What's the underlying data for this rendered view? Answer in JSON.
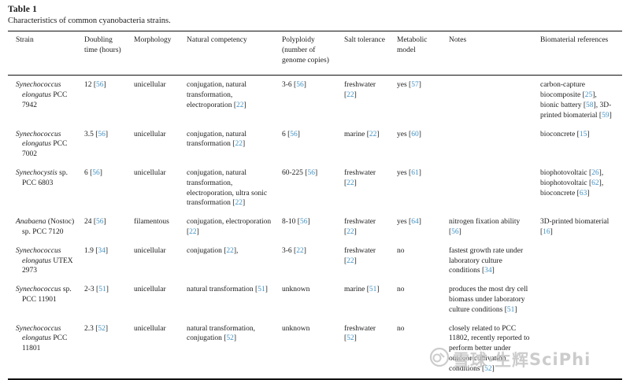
{
  "page": {
    "table_label": "Table 1",
    "caption": "Characteristics of common cyanobacteria strains."
  },
  "colors": {
    "citation_link": "#4293c6",
    "rule": "#111111",
    "watermark": "#c7c7c7"
  },
  "columns": {
    "strain": "Strain",
    "doubling": "Doubling time (hours)",
    "morphology": "Morphology",
    "competency": "Natural competency",
    "polyploidy": "Polyploidy (number of genome copies)",
    "salt": "Salt tolerance",
    "metabolic": "Metabolic model",
    "notes": "Notes",
    "biomaterial": "Biomaterial references"
  },
  "rows": [
    {
      "strain_italic": "Synechococcus elongatus",
      "strain_roman": "PCC 7942",
      "doubling": "12 [56]",
      "morphology": "unicellular",
      "competency": "conjugation, natural transformation, electroporation [22]",
      "polyploidy": "3-6 [56]",
      "salt": "freshwater [22]",
      "metabolic": "yes [57]",
      "notes": "",
      "biomaterial": "carbon-capture biocomposite [25], bionic battery [58], 3D-printed biomaterial [59]"
    },
    {
      "strain_italic": "Synechococcus elongatus",
      "strain_roman": "PCC 7002",
      "doubling": "3.5 [56]",
      "morphology": "unicellular",
      "competency": "conjugation, natural transformation [22]",
      "polyploidy": "6 [56]",
      "salt": "marine [22]",
      "metabolic": "yes [60]",
      "notes": "",
      "biomaterial": "bioconcrete [15]"
    },
    {
      "strain_italic": "Synechocystis",
      "strain_roman": "sp. PCC 6803",
      "doubling": "6 [56]",
      "morphology": "unicellular",
      "competency": "conjugation, natural transformation, electroporation, ultra sonic transformation [22]",
      "polyploidy": "60-225 [56]",
      "salt": "freshwater [22]",
      "metabolic": "yes [61]",
      "notes": "",
      "biomaterial": "biophotovoltaic [26], biophotovoltaic [62], bioconcrete [63]"
    },
    {
      "strain_italic": "Anabaena",
      "strain_roman": "(Nostoc) sp. PCC 7120",
      "doubling": "24 [56]",
      "morphology": "filamentous",
      "competency": "conjugation, electroporation [22]",
      "polyploidy": "8-10 [56]",
      "salt": "freshwater [22]",
      "metabolic": "yes [64]",
      "notes": "nitrogen fixation ability [56]",
      "biomaterial": "3D-printed biomaterial [16]"
    },
    {
      "strain_italic": "Synechococcus elongatus",
      "strain_roman": "UTEX 2973",
      "doubling": "1.9 [34]",
      "morphology": "unicellular",
      "competency": "conjugation [22],",
      "polyploidy": "3-6 [22]",
      "salt": "freshwater [22]",
      "metabolic": "no",
      "notes": "fastest growth rate under laboratory culture conditions [34]",
      "biomaterial": ""
    },
    {
      "strain_italic": "Synechococcus",
      "strain_roman": "sp. PCC 11901",
      "doubling": "2-3 [51]",
      "morphology": "unicellular",
      "competency": "natural transformation [51]",
      "polyploidy": "unknown",
      "salt": "marine [51]",
      "metabolic": "no",
      "notes": "produces the most dry cell biomass under laboratory culture conditions [51]",
      "biomaterial": ""
    },
    {
      "strain_italic": "Synechococcus elongatus",
      "strain_roman": "PCC 11801",
      "doubling": "2.3 [52]",
      "morphology": "unicellular",
      "competency": "natural transformation, conjugation [52]",
      "polyploidy": "unknown",
      "salt": "freshwater [52]",
      "metabolic": "no",
      "notes": "closely related to PCC 11802, recently reported to perform better under outdoor cultivation conditions [52]",
      "biomaterial": ""
    }
  ],
  "watermark": {
    "text_cn": "雪球·生辉",
    "text_en": "SciPhi"
  }
}
